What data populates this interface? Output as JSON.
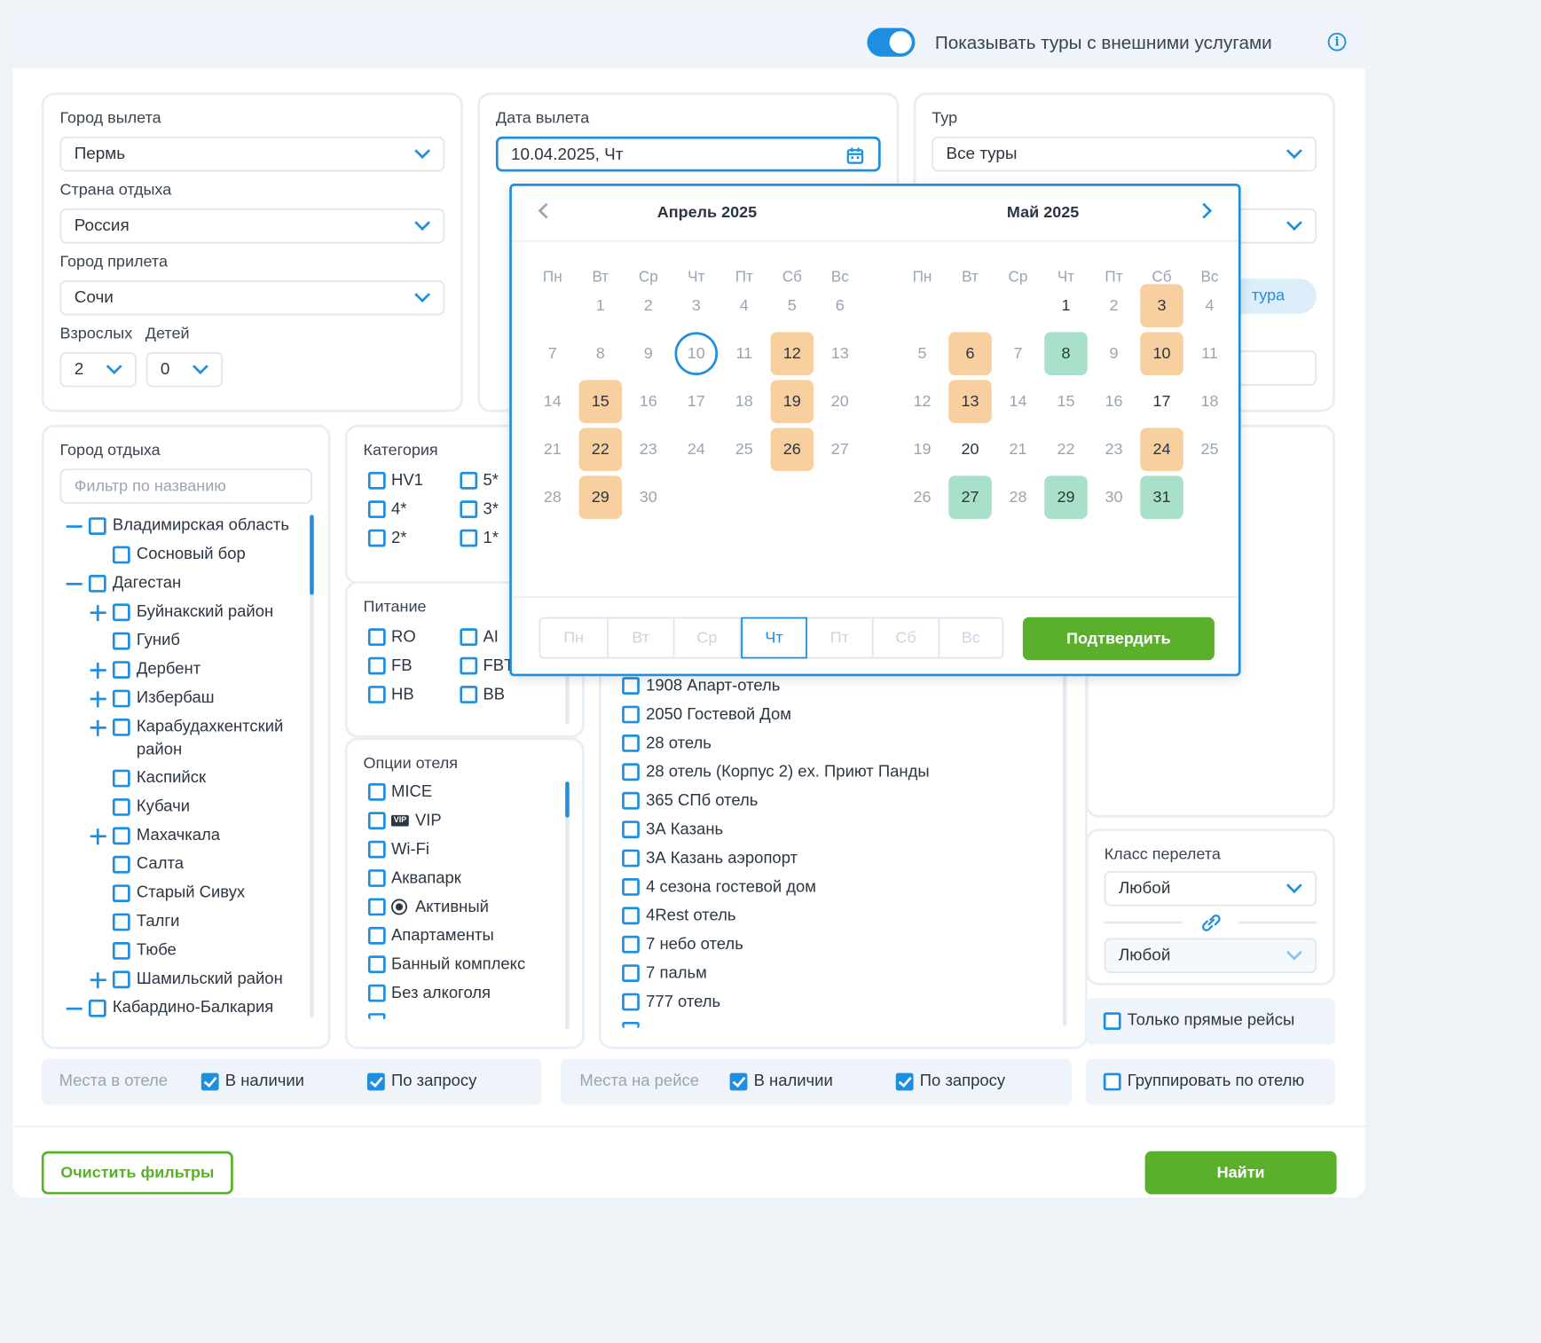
{
  "header": {
    "toggle_label": "Показывать туры с внешними услугами"
  },
  "departure": {
    "city_label": "Город вылета",
    "city_value": "Пермь",
    "country_label": "Страна отдыха",
    "country_value": "Россия",
    "arrival_label": "Город прилета",
    "arrival_value": "Сочи",
    "adults_label": "Взрослых",
    "adults_value": "2",
    "children_label": "Детей",
    "children_value": "0"
  },
  "date": {
    "label": "Дата вылета",
    "value": "10.04.2025, Чт"
  },
  "tour": {
    "label": "Тур",
    "value": "Все туры",
    "type_btn_partial": "тура"
  },
  "calendar": {
    "left_month": "Апрель  2025",
    "right_month": "Май  2025",
    "weekdays": [
      "Пн",
      "Вт",
      "Ср",
      "Чт",
      "Пт",
      "Сб",
      "Вс"
    ],
    "confirm": "Подтвердить"
  },
  "city_rest": {
    "label": "Город отдыха",
    "filter_placeholder": "Фильтр по названию",
    "tree": [
      "Владимирская область",
      "Сосновый бор",
      "Дагестан",
      "Буйнакский район",
      "Гуниб",
      "Дербент",
      "Избербаш",
      "Карабудахкентский",
      "район",
      "Каспийск",
      "Кубачи",
      "Махачкала",
      "Салта",
      "Старый Сивух",
      "Талги",
      "Тюбе",
      "Шамильский район",
      "Кабардино-Балкария"
    ]
  },
  "category": {
    "label": "Категория",
    "items": [
      "HV1",
      "5*",
      "4*",
      "3*",
      "2*",
      "1*"
    ]
  },
  "meals": {
    "label": "Питание",
    "items": [
      "RO",
      "AI",
      "FB",
      "FBTRM",
      "HB",
      "BB"
    ]
  },
  "hotel_options": {
    "label": "Опции отеля",
    "items": [
      "MICE",
      "VIP",
      "Wi-Fi",
      "Аквапарк",
      "Активный",
      "Апартаменты",
      "Банный комплекс",
      "Без алкоголя"
    ],
    "vip_badge": "VIP"
  },
  "hotels": {
    "items": [
      "1908 Апарт-отель",
      "2050 Гостевой Дом",
      "28 отель",
      "28 отель (Корпус 2) ex. Приют Панды",
      "365 СПб отель",
      "3А Казань",
      "3А Казань аэропорт",
      "4 сезона гостевой дом",
      "4Rest отель",
      "7 небо отель",
      "7 пальм",
      "777 отель"
    ]
  },
  "flight_class": {
    "label": "Класс перелета",
    "value1": "Любой",
    "value2": "Любой"
  },
  "direct": "Только прямые рейсы",
  "group": "Группировать по отелю",
  "hotel_places": {
    "label": "Места в отеле",
    "avail": "В наличии",
    "request": "По запросу"
  },
  "flight_places": {
    "label": "Места на рейсе",
    "avail": "В наличии",
    "request": "По запросу"
  },
  "footer": {
    "clear": "Очистить фильтры",
    "search": "Найти"
  }
}
